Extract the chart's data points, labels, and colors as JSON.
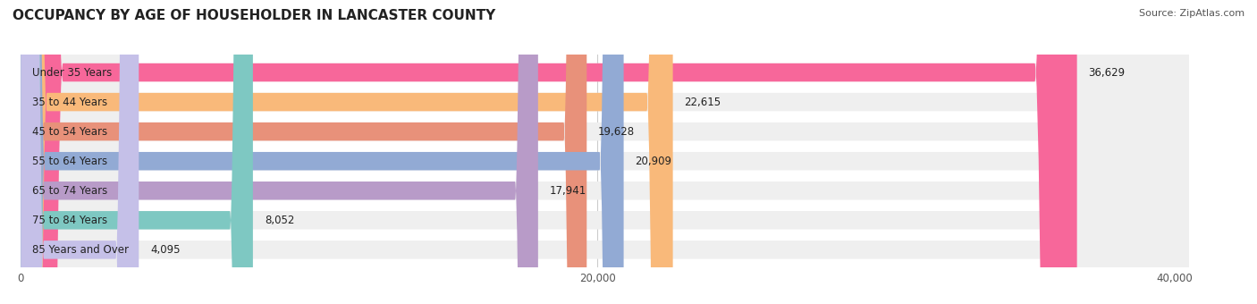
{
  "title": "OCCUPANCY BY AGE OF HOUSEHOLDER IN LANCASTER COUNTY",
  "source": "Source: ZipAtlas.com",
  "categories": [
    "Under 35 Years",
    "35 to 44 Years",
    "45 to 54 Years",
    "55 to 64 Years",
    "65 to 74 Years",
    "75 to 84 Years",
    "85 Years and Over"
  ],
  "values": [
    36629,
    22615,
    19628,
    20909,
    17941,
    8052,
    4095
  ],
  "bar_colors": [
    "#F7679A",
    "#F9B97A",
    "#E8917A",
    "#92AAD4",
    "#B89BC8",
    "#7EC8C2",
    "#C5C0E8"
  ],
  "bar_bg_color": "#EFEFEF",
  "xlim": [
    -500,
    42000
  ],
  "xticks": [
    0,
    20000,
    40000
  ],
  "xticklabels": [
    "0",
    "20,000",
    "40,000"
  ],
  "title_fontsize": 11,
  "label_fontsize": 8.5,
  "value_fontsize": 8.5,
  "source_fontsize": 8,
  "bar_height": 0.62,
  "bg_color": "#FFFFFF",
  "title_color": "#222222",
  "source_color": "#555555",
  "label_color": "#222222",
  "value_color": "#222222",
  "grid_color": "#CCCCCC"
}
